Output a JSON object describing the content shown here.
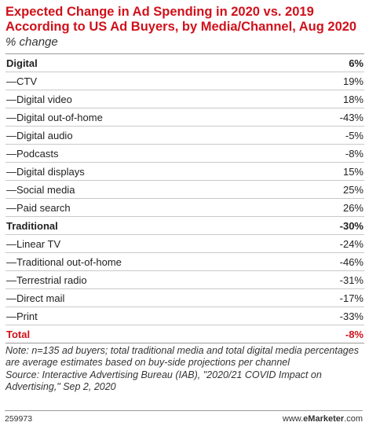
{
  "chart_data": {
    "type": "table",
    "title": "Expected Change in Ad Spending in 2020 vs. 2019 According to US Ad Buyers, by Media/Channel, Aug 2020",
    "subtitle": "% change",
    "rows": [
      {
        "label": "Digital",
        "value": "6%",
        "kind": "group"
      },
      {
        "label": "—CTV",
        "value": "19%",
        "kind": "item"
      },
      {
        "label": "—Digital video",
        "value": "18%",
        "kind": "item"
      },
      {
        "label": "—Digital out-of-home",
        "value": "-43%",
        "kind": "item"
      },
      {
        "label": "—Digital audio",
        "value": "-5%",
        "kind": "item"
      },
      {
        "label": "—Podcasts",
        "value": "-8%",
        "kind": "item"
      },
      {
        "label": "—Digital displays",
        "value": "15%",
        "kind": "item"
      },
      {
        "label": "—Social media",
        "value": "25%",
        "kind": "item"
      },
      {
        "label": "—Paid search",
        "value": "26%",
        "kind": "item"
      },
      {
        "label": "Traditional",
        "value": "-30%",
        "kind": "group"
      },
      {
        "label": "—Linear TV",
        "value": "-24%",
        "kind": "item"
      },
      {
        "label": "—Traditional out-of-home",
        "value": "-46%",
        "kind": "item"
      },
      {
        "label": "—Terrestrial radio",
        "value": "-31%",
        "kind": "item"
      },
      {
        "label": "—Direct mail",
        "value": "-17%",
        "kind": "item"
      },
      {
        "label": "—Print",
        "value": "-33%",
        "kind": "item"
      },
      {
        "label": "Total",
        "value": "-8%",
        "kind": "total"
      }
    ],
    "note": "Note: n=135 ad buyers; total traditional media and total digital media percentages are average estimates based on buy-side projections per channel",
    "source": "Source: Interactive Advertising Bureau (IAB), \"2020/21 COVID Impact on Advertising,\" Sep 2, 2020"
  },
  "footer": {
    "chart_id": "259973",
    "brand_prefix": "www.",
    "brand_name": "eMarketer",
    "brand_suffix": ".com"
  },
  "colors": {
    "accent": "#d0111b",
    "rule": "#9a9a9a",
    "row_divider": "#c9c9c9"
  }
}
